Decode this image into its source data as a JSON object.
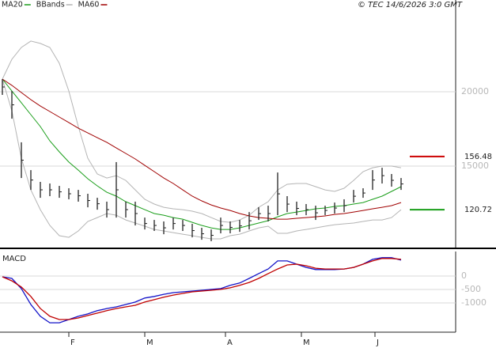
{
  "chart_data": [
    {
      "type": "ohlc",
      "credit": "© TEC 14/6/2026 3:0 GMT",
      "x": [
        0,
        1,
        2,
        3,
        4,
        5,
        6,
        7,
        8,
        9,
        10,
        11,
        12,
        13,
        14,
        15,
        16,
        17,
        18,
        19,
        20,
        21,
        22,
        23,
        24,
        25,
        26,
        27,
        28,
        29,
        30,
        31,
        32,
        33,
        34,
        35,
        36,
        37,
        38,
        39,
        40,
        41,
        42
      ],
      "xlim": [
        -0.25,
        47.75
      ],
      "ylim": [
        9470,
        26170
      ],
      "yticks": [
        15000,
        20000
      ],
      "grid": true,
      "bar_color": "#222222",
      "high": [
        20850,
        20050,
        16600,
        14730,
        13940,
        13830,
        13670,
        13510,
        13400,
        13140,
        12870,
        12610,
        15270,
        12610,
        12610,
        11540,
        11380,
        11280,
        11540,
        11380,
        11120,
        10850,
        10740,
        11540,
        11280,
        11380,
        11910,
        12230,
        12340,
        14570,
        12980,
        12610,
        12450,
        12340,
        12340,
        12550,
        12770,
        13400,
        13510,
        14730,
        14890,
        14470,
        14200
      ],
      "low": [
        19790,
        18190,
        14200,
        13400,
        12870,
        12980,
        12870,
        12770,
        12610,
        12230,
        12070,
        11540,
        11540,
        11540,
        11010,
        10740,
        10640,
        10420,
        10740,
        10640,
        10210,
        10050,
        9950,
        10480,
        10480,
        10580,
        10740,
        11380,
        11280,
        11700,
        11910,
        11700,
        11700,
        11380,
        11700,
        11810,
        11910,
        12550,
        12870,
        13400,
        13830,
        13620,
        13400
      ],
      "series": [
        {
          "name": "MA20",
          "color": "#1a9e1a",
          "values": [
            20850,
            20050,
            19260,
            18460,
            17660,
            16700,
            15960,
            15270,
            14730,
            14150,
            13670,
            13240,
            12980,
            12610,
            12340,
            12070,
            11810,
            11700,
            11540,
            11430,
            11220,
            11010,
            10850,
            10740,
            10740,
            10850,
            11010,
            11170,
            11330,
            11590,
            11810,
            11910,
            12020,
            12130,
            12180,
            12290,
            12340,
            12450,
            12550,
            12770,
            12980,
            13300,
            13620
          ]
        },
        {
          "name": "BBands",
          "color": "#b4b4b4",
          "upper": [
            20850,
            22180,
            22980,
            23410,
            23250,
            22980,
            21910,
            20050,
            17660,
            15530,
            14470,
            14200,
            14360,
            14040,
            13400,
            12770,
            12450,
            12230,
            12130,
            12070,
            11970,
            11810,
            11540,
            11280,
            11220,
            11380,
            11700,
            12230,
            12610,
            13400,
            13780,
            13830,
            13830,
            13620,
            13400,
            13300,
            13510,
            14040,
            14630,
            14890,
            15000,
            15000,
            14890
          ],
          "lower": [
            20850,
            18720,
            15530,
            13400,
            12070,
            11010,
            10320,
            10210,
            10640,
            11280,
            11540,
            11810,
            11700,
            11380,
            11170,
            10960,
            10740,
            10640,
            10530,
            10420,
            10320,
            10210,
            10110,
            10110,
            10320,
            10420,
            10640,
            10850,
            10960,
            10480,
            10480,
            10640,
            10740,
            10850,
            10960,
            11060,
            11120,
            11170,
            11280,
            11380,
            11380,
            11540,
            12070
          ]
        },
        {
          "name": "MA60",
          "color": "#a00000",
          "values": [
            20850,
            20430,
            19950,
            19470,
            19040,
            18670,
            18300,
            17930,
            17550,
            17230,
            16910,
            16600,
            16220,
            15850,
            15480,
            15050,
            14630,
            14200,
            13830,
            13400,
            12980,
            12660,
            12390,
            12180,
            12020,
            11810,
            11650,
            11540,
            11490,
            11430,
            11430,
            11490,
            11540,
            11590,
            11650,
            11750,
            11810,
            11910,
            12020,
            12130,
            12230,
            12340,
            12550
          ]
        }
      ],
      "markers": [
        {
          "value": 15648,
          "label": "156.48",
          "color": "#cc0000"
        },
        {
          "value": 12072,
          "label": "120.72",
          "color": "#1a9e1a"
        }
      ]
    },
    {
      "type": "line",
      "title": "MACD",
      "x": [
        0,
        1,
        2,
        3,
        4,
        5,
        6,
        7,
        8,
        9,
        10,
        11,
        12,
        13,
        14,
        15,
        16,
        17,
        18,
        19,
        20,
        21,
        22,
        23,
        24,
        25,
        26,
        27,
        28,
        29,
        30,
        31,
        32,
        33,
        34,
        35,
        36,
        37,
        38,
        39,
        40,
        41,
        42
      ],
      "xlim": [
        -0.25,
        47.75
      ],
      "ylim": [
        -2090,
        910
      ],
      "yticks": [
        0,
        -500,
        -1000
      ],
      "grid": true,
      "xticks": [
        {
          "value": 7,
          "label": "F"
        },
        {
          "value": 15,
          "label": "M"
        },
        {
          "value": 23.5,
          "label": "A"
        },
        {
          "value": 31.5,
          "label": "M"
        },
        {
          "value": 39.25,
          "label": "J"
        }
      ],
      "series": [
        {
          "color": "#1414c8",
          "values": [
            -30,
            -90,
            -470,
            -1060,
            -1500,
            -1740,
            -1740,
            -1620,
            -1500,
            -1410,
            -1290,
            -1210,
            -1150,
            -1060,
            -970,
            -820,
            -760,
            -680,
            -620,
            -590,
            -560,
            -530,
            -500,
            -470,
            -350,
            -260,
            -90,
            90,
            260,
            560,
            560,
            440,
            320,
            240,
            240,
            240,
            260,
            320,
            440,
            620,
            680,
            680,
            590
          ]
        },
        {
          "color": "#c00000",
          "values": [
            -30,
            -180,
            -410,
            -760,
            -1210,
            -1500,
            -1620,
            -1620,
            -1560,
            -1470,
            -1380,
            -1290,
            -1210,
            -1150,
            -1090,
            -970,
            -880,
            -790,
            -710,
            -650,
            -590,
            -560,
            -530,
            -500,
            -440,
            -350,
            -240,
            -90,
            90,
            260,
            410,
            440,
            380,
            290,
            260,
            260,
            260,
            320,
            440,
            560,
            650,
            650,
            620
          ]
        }
      ]
    }
  ]
}
